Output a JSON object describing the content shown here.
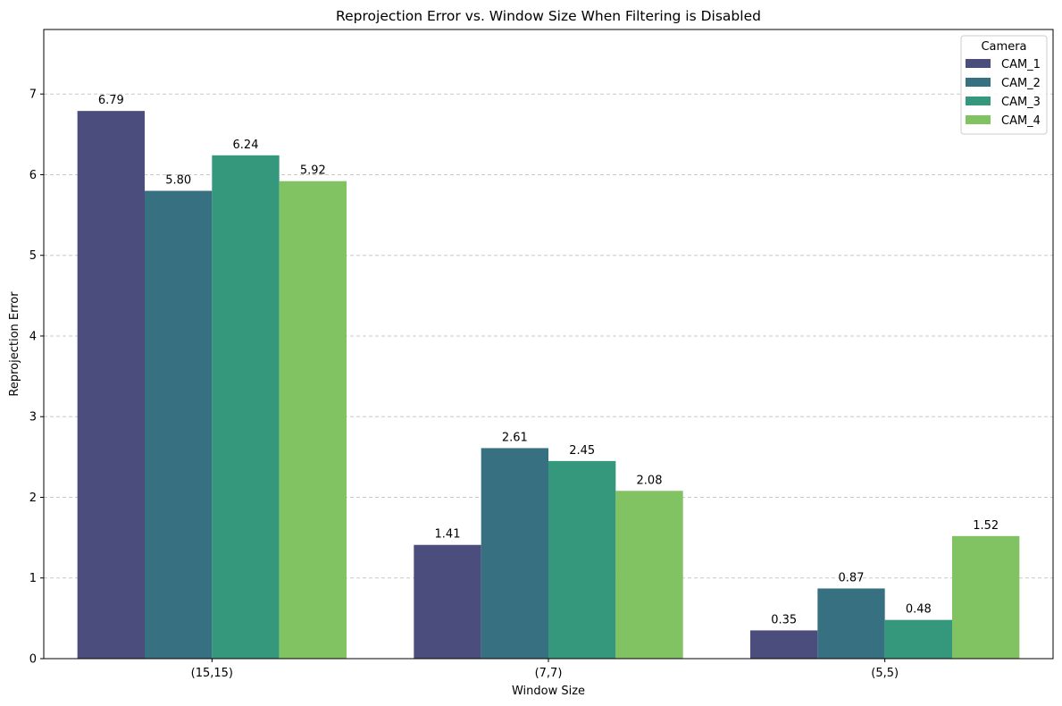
{
  "chart_data": {
    "type": "bar",
    "title": "Reprojection Error vs. Window Size When Filtering is Disabled",
    "xlabel": "Window Size",
    "ylabel": "Reprojection Error",
    "categories": [
      "(15,15)",
      "(7,7)",
      "(5,5)"
    ],
    "ylim": [
      0,
      7.8
    ],
    "yticks": [
      0,
      1,
      2,
      3,
      4,
      5,
      6,
      7
    ],
    "grid": "y-dashed",
    "legend": {
      "title": "Camera",
      "position": "top-right"
    },
    "series": [
      {
        "name": "CAM_1",
        "color": "#4b4d7c",
        "values": [
          6.79,
          1.41,
          0.35
        ],
        "labels": [
          "6.79",
          "1.41",
          "0.35"
        ]
      },
      {
        "name": "CAM_2",
        "color": "#377080",
        "values": [
          5.8,
          2.61,
          0.87
        ],
        "labels": [
          "5.80",
          "2.61",
          "0.87"
        ]
      },
      {
        "name": "CAM_3",
        "color": "#35977c",
        "values": [
          6.24,
          2.45,
          0.48
        ],
        "labels": [
          "6.24",
          "2.45",
          "0.48"
        ]
      },
      {
        "name": "CAM_4",
        "color": "#81c262",
        "values": [
          5.92,
          2.08,
          1.52
        ],
        "labels": [
          "5.92",
          "2.08",
          "1.52"
        ]
      }
    ]
  }
}
